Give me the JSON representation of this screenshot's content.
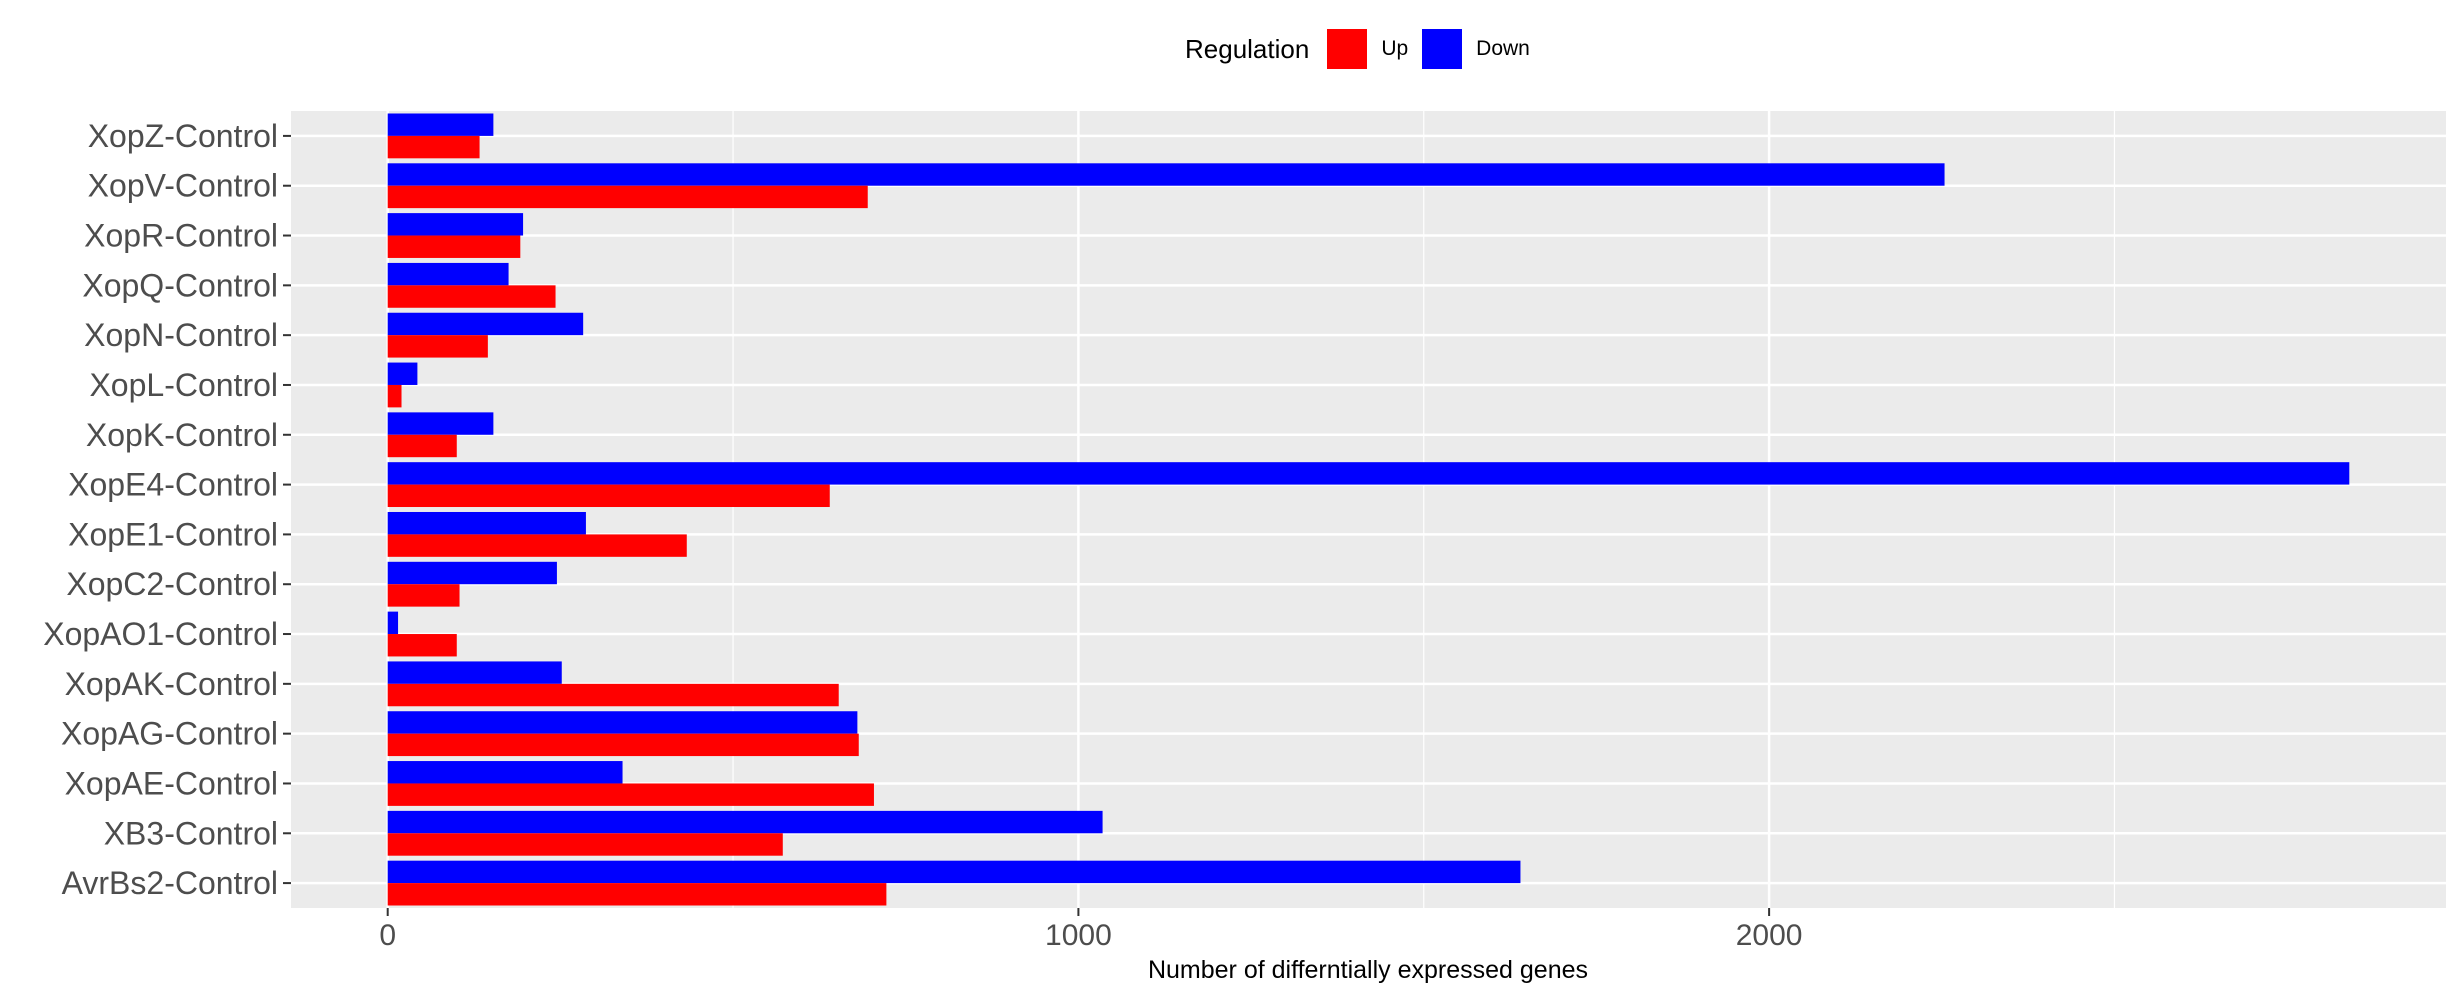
{
  "chart_data": {
    "type": "bar",
    "orientation": "horizontal",
    "title": "",
    "xlabel": "Number of differntially expressed genes",
    "ylabel": "",
    "xlim": [
      -140,
      2980
    ],
    "x_ticks": [
      0,
      1000,
      2000
    ],
    "grid": true,
    "legend": {
      "title": "Regulation",
      "position": "top"
    },
    "categories": [
      "AvrBs2-Control",
      "XB3-Control",
      "XopAE-Control",
      "XopAG-Control",
      "XopAK-Control",
      "XopAO1-Control",
      "XopC2-Control",
      "XopE1-Control",
      "XopE4-Control",
      "XopK-Control",
      "XopL-Control",
      "XopN-Control",
      "XopQ-Control",
      "XopR-Control",
      "XopV-Control",
      "XopZ-Control"
    ],
    "series": [
      {
        "name": "Up",
        "color": "#ff0000",
        "values": [
          722,
          572,
          704,
          682,
          653,
          100,
          104,
          433,
          640,
          100,
          20,
          145,
          243,
          192,
          695,
          133
        ]
      },
      {
        "name": "Down",
        "color": "#0000ff",
        "values": [
          1640,
          1035,
          340,
          680,
          252,
          15,
          245,
          287,
          2840,
          153,
          43,
          283,
          175,
          196,
          2254,
          153
        ]
      }
    ]
  }
}
